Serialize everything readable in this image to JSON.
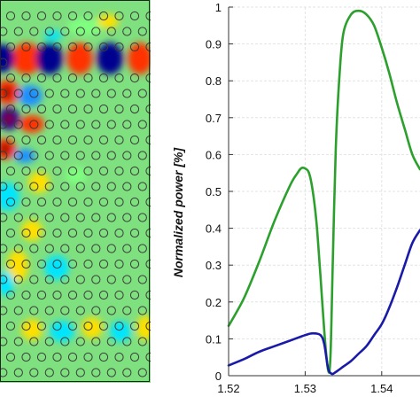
{
  "field_map": {
    "colormap": [
      "#00008f",
      "#1e90ff",
      "#00e5ff",
      "#7fff7f",
      "#ffe000",
      "#ff3300",
      "#8f0000"
    ],
    "background_color": "#7fe07f",
    "hole_outline_color": "#3a3a3a"
  },
  "chart_data": {
    "type": "line",
    "title": "",
    "xlabel": "",
    "ylabel": "Normalized power [%]",
    "xlim": [
      1.52,
      1.545
    ],
    "ylim": [
      0,
      1
    ],
    "xticks": [
      "1.52",
      "1.53",
      "1.54"
    ],
    "yticks": [
      "0",
      "0.1",
      "0.2",
      "0.3",
      "0.4",
      "0.5",
      "0.6",
      "0.7",
      "0.8",
      "0.9",
      "1"
    ],
    "grid": true,
    "legend": "none",
    "series": [
      {
        "color": "#2ca02c",
        "x": [
          1.52,
          1.522,
          1.524,
          1.526,
          1.528,
          1.529,
          1.5295,
          1.53,
          1.5305,
          1.531,
          1.5315,
          1.532,
          1.5325,
          1.533,
          1.5333,
          1.5336,
          1.534,
          1.5345,
          1.535,
          1.536,
          1.537,
          1.538,
          1.539,
          1.54,
          1.541,
          1.542,
          1.543,
          1.544,
          1.545
        ],
        "y": [
          0.135,
          0.21,
          0.31,
          0.42,
          0.515,
          0.55,
          0.563,
          0.562,
          0.55,
          0.5,
          0.41,
          0.27,
          0.12,
          0.015,
          0.05,
          0.3,
          0.62,
          0.82,
          0.93,
          0.98,
          0.99,
          0.98,
          0.95,
          0.89,
          0.82,
          0.74,
          0.67,
          0.6,
          0.56
        ]
      },
      {
        "color": "#1a1aa8",
        "x": [
          1.52,
          1.522,
          1.524,
          1.526,
          1.528,
          1.53,
          1.531,
          1.532,
          1.5325,
          1.533,
          1.5335,
          1.534,
          1.535,
          1.536,
          1.537,
          1.538,
          1.539,
          1.54,
          1.541,
          1.542,
          1.543,
          1.544,
          1.545
        ],
        "y": [
          0.028,
          0.045,
          0.065,
          0.08,
          0.095,
          0.11,
          0.115,
          0.11,
          0.085,
          0.02,
          0.005,
          0.01,
          0.025,
          0.04,
          0.06,
          0.08,
          0.11,
          0.14,
          0.185,
          0.24,
          0.3,
          0.36,
          0.395
        ]
      }
    ]
  }
}
